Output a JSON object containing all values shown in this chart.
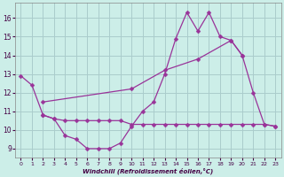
{
  "xlabel": "Windchill (Refroidissement éolien,°C)",
  "background_color": "#cceee8",
  "grid_color": "#aacccc",
  "line_color": "#993399",
  "xlim": [
    -0.5,
    23.5
  ],
  "ylim": [
    8.5,
    16.8
  ],
  "yticks": [
    9,
    10,
    11,
    12,
    13,
    14,
    15,
    16
  ],
  "xticks": [
    0,
    1,
    2,
    3,
    4,
    5,
    6,
    7,
    8,
    9,
    10,
    11,
    12,
    13,
    14,
    15,
    16,
    17,
    18,
    19,
    20,
    21,
    22,
    23
  ],
  "series1_x": [
    0,
    1,
    2,
    3,
    4,
    5,
    6,
    7,
    8,
    9,
    10,
    11,
    12,
    13,
    14,
    15,
    16,
    17,
    18,
    19,
    20,
    21,
    22,
    23
  ],
  "series1_y": [
    12.9,
    12.4,
    10.8,
    10.6,
    9.7,
    9.5,
    9.0,
    9.0,
    9.0,
    9.3,
    10.2,
    11.0,
    11.5,
    13.0,
    14.9,
    16.3,
    15.3,
    16.3,
    15.0,
    14.8,
    14.0,
    12.0,
    10.3,
    10.2
  ],
  "series2_x": [
    2,
    3,
    4,
    5,
    6,
    7,
    8,
    9,
    10,
    11,
    12,
    13,
    14,
    15,
    16,
    17,
    18,
    19,
    20,
    21,
    22,
    23
  ],
  "series2_y": [
    10.8,
    10.6,
    10.5,
    10.5,
    10.5,
    10.5,
    10.5,
    10.5,
    10.3,
    10.3,
    10.3,
    10.3,
    10.3,
    10.3,
    10.3,
    10.3,
    10.3,
    10.3,
    10.3,
    10.3,
    10.3,
    10.2
  ],
  "series3_x": [
    2,
    10,
    13,
    16,
    19,
    20
  ],
  "series3_y": [
    11.5,
    12.2,
    13.2,
    13.8,
    14.8,
    14.0
  ]
}
